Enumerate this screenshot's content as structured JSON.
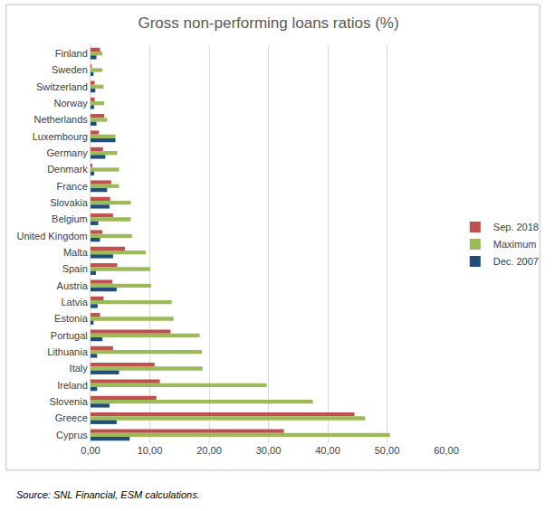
{
  "chart_data": {
    "type": "bar",
    "orientation": "horizontal",
    "title": "Gross non-performing loans ratios (%)",
    "categories": [
      "Finland",
      "Sweden",
      "Switzerland",
      "Norway",
      "Netherlands",
      "Luxembourg",
      "Germany",
      "Denmark",
      "France",
      "Slovakia",
      "Belgium",
      "United Kingdom",
      "Malta",
      "Spain",
      "Austria",
      "Latvia",
      "Estonia",
      "Portugal",
      "Lithuania",
      "Italy",
      "Ireland",
      "Slovenia",
      "Greece",
      "Cyprus"
    ],
    "series": [
      {
        "name": "Sep. 2018",
        "color": "#c0504d",
        "values": [
          1.6,
          0.2,
          0.7,
          0.7,
          2.3,
          1.4,
          2.1,
          0.3,
          3.5,
          3.3,
          3.8,
          2.0,
          5.8,
          4.5,
          3.7,
          2.2,
          1.6,
          13.5,
          3.8,
          10.8,
          11.7,
          11.1,
          44.5,
          32.6
        ]
      },
      {
        "name": "Maximum",
        "color": "#9bbb59",
        "values": [
          2.0,
          2.0,
          2.2,
          2.3,
          2.8,
          4.2,
          4.5,
          4.8,
          4.8,
          6.8,
          6.8,
          7.0,
          9.3,
          10.1,
          10.2,
          13.7,
          14.0,
          18.4,
          18.8,
          18.9,
          29.7,
          37.5,
          46.3,
          50.5
        ]
      },
      {
        "name": "Dec. 2007",
        "color": "#1f4e79",
        "values": [
          1.0,
          0.5,
          0.8,
          0.6,
          1.0,
          4.2,
          2.5,
          0.6,
          2.8,
          3.2,
          1.3,
          1.6,
          3.8,
          0.9,
          4.4,
          1.2,
          0.5,
          2.0,
          1.1,
          4.8,
          1.1,
          3.2,
          4.4,
          6.6
        ]
      }
    ],
    "xlim": [
      0,
      60
    ],
    "xticks": [
      {
        "value": 0,
        "label": "0,00"
      },
      {
        "value": 10,
        "label": "10,00"
      },
      {
        "value": 20,
        "label": "20,00"
      },
      {
        "value": 30,
        "label": "30,00"
      },
      {
        "value": 40,
        "label": "40,00"
      },
      {
        "value": 50,
        "label": "50,00"
      },
      {
        "value": 60,
        "label": "60,00"
      }
    ],
    "grid": true,
    "legend": "right",
    "annotations": [
      "Source: SNL Financial, ESM calculations."
    ]
  }
}
